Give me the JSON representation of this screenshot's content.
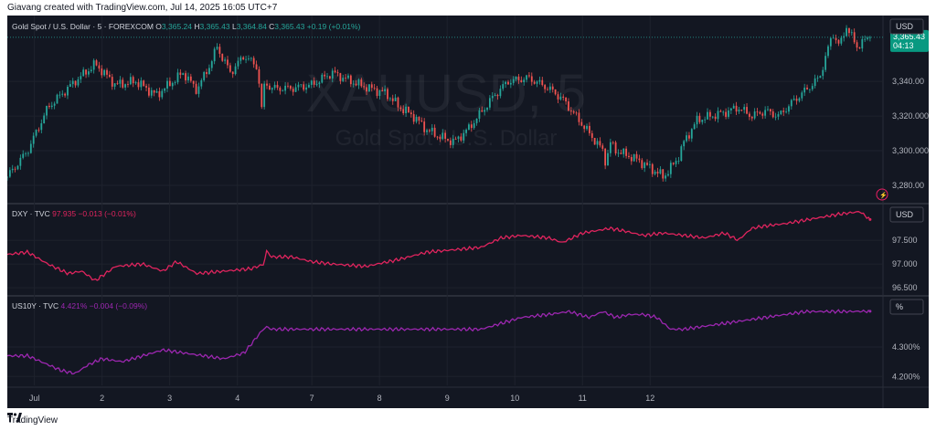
{
  "header": {
    "caption": "Giavang created with TradingView.com, Jul 14, 2025 16:05 UTC+7"
  },
  "footer": {
    "brand": "TradingView"
  },
  "colors": {
    "background": "#131722",
    "grid": "#1e222d",
    "separator": "#2a2e39",
    "up": "#26a69a",
    "down": "#ef5350",
    "dxy": "#e0245e",
    "us10y": "#9c27b0",
    "axis_text": "#b2b5be",
    "price_tag": "#089981"
  },
  "chart_data": [
    {
      "type": "candlestick",
      "legend": {
        "title": "Gold Spot / U.S. Dollar · 5 · FOREXCOM",
        "o_label": "O",
        "o": "3,365.24",
        "h_label": "H",
        "h": "3,365.43",
        "l_label": "L",
        "l": "3,364.84",
        "c_label": "C",
        "c": "3,365.43",
        "change": "+0.19 (+0.01%)"
      },
      "watermark_symbol": "XAUUSD, 5",
      "watermark_name": "Gold Spot / U.S. Dollar",
      "currency": "USD",
      "y_ticks": [
        "3,340.00",
        "3,320.000",
        "3,300.000",
        "3,280.00"
      ],
      "y_tick_values": [
        3340,
        3320,
        3300,
        3280
      ],
      "ylim": [
        3270,
        3378
      ],
      "last_price": "3,365.43",
      "countdown": "04:13",
      "last_value": 3365.43,
      "x": [
        0.0,
        0.3,
        0.6,
        1.0,
        1.3,
        1.6,
        1.9,
        2.2,
        2.6,
        2.8,
        3.0,
        3.1,
        3.2,
        3.3,
        3.5,
        3.7,
        3.78,
        3.8,
        3.9,
        4.2,
        4.5,
        4.8,
        5.2,
        5.6,
        5.8,
        6.0,
        6.2,
        6.4,
        6.6,
        6.8,
        7.0,
        7.2,
        7.4,
        7.7,
        8.0,
        8.2,
        8.4,
        8.6,
        8.8,
        8.85,
        8.9,
        9.0,
        9.3,
        9.5,
        9.7,
        9.9,
        10.0,
        10.2,
        10.4,
        10.6,
        10.8,
        11.0,
        11.2,
        11.4,
        11.6,
        11.8,
        12.0,
        12.1,
        12.2,
        12.3,
        12.4,
        12.55,
        12.65,
        12.75
      ],
      "values": [
        3285,
        3300,
        3325,
        3340,
        3350,
        3338,
        3340,
        3332,
        3345,
        3335,
        3350,
        3360,
        3352,
        3345,
        3355,
        3348,
        3315,
        3340,
        3336,
        3336,
        3338,
        3345,
        3338,
        3333,
        3325,
        3320,
        3312,
        3308,
        3305,
        3312,
        3322,
        3332,
        3340,
        3342,
        3336,
        3330,
        3320,
        3310,
        3300,
        3292,
        3305,
        3300,
        3295,
        3290,
        3285,
        3295,
        3305,
        3318,
        3320,
        3322,
        3325,
        3320,
        3323,
        3320,
        3328,
        3335,
        3342,
        3355,
        3368,
        3360,
        3372,
        3360,
        3363,
        3365.43
      ]
    },
    {
      "type": "line",
      "legend": {
        "symbol": "DXY · TVC",
        "value": "97.935",
        "change": "−0.013 (−0.01%)"
      },
      "currency": "USD",
      "y_ticks": [
        "97.500",
        "97.000",
        "96.500"
      ],
      "y_tick_values": [
        97.5,
        97.0,
        96.5
      ],
      "ylim": [
        96.35,
        98.25
      ],
      "x": [
        0.0,
        0.3,
        0.6,
        0.9,
        1.1,
        1.3,
        1.6,
        2.0,
        2.3,
        2.5,
        2.8,
        3.2,
        3.6,
        3.8,
        3.82,
        3.9,
        4.2,
        4.5,
        4.8,
        5.3,
        5.8,
        6.2,
        6.6,
        7.0,
        7.3,
        7.6,
        8.0,
        8.2,
        8.5,
        8.9,
        9.1,
        9.4,
        9.7,
        10.0,
        10.3,
        10.6,
        10.8,
        11.0,
        11.2,
        11.5,
        11.9,
        12.3,
        12.6,
        12.75
      ],
      "values": [
        97.2,
        97.25,
        97.0,
        96.8,
        96.85,
        96.65,
        96.95,
        97.0,
        96.85,
        97.05,
        96.8,
        96.85,
        96.9,
        97.0,
        97.3,
        97.15,
        97.15,
        97.05,
        97.0,
        96.95,
        97.1,
        97.25,
        97.3,
        97.35,
        97.55,
        97.6,
        97.55,
        97.45,
        97.65,
        97.75,
        97.7,
        97.6,
        97.65,
        97.6,
        97.55,
        97.65,
        97.5,
        97.75,
        97.8,
        97.85,
        97.95,
        98.05,
        98.1,
        97.935
      ]
    },
    {
      "type": "line",
      "legend": {
        "symbol": "US10Y · TVC",
        "value": "4.421%",
        "change": "−0.004 (−0.09%)"
      },
      "currency": "%",
      "y_ticks": [
        "4.300%",
        "4.200%"
      ],
      "y_tick_values": [
        4.3,
        4.2
      ],
      "ylim": [
        4.17,
        4.47
      ],
      "x": [
        0.0,
        0.3,
        0.5,
        0.8,
        1.0,
        1.2,
        1.4,
        1.7,
        2.0,
        2.3,
        2.6,
        2.9,
        3.2,
        3.5,
        3.78,
        3.8,
        3.82,
        3.9,
        4.2,
        4.6,
        5.0,
        5.4,
        5.8,
        6.2,
        6.6,
        7.0,
        7.3,
        7.6,
        8.0,
        8.3,
        8.6,
        8.8,
        9.0,
        9.2,
        9.4,
        9.6,
        9.8,
        10.0,
        10.3,
        10.6,
        10.9,
        11.2,
        11.5,
        11.8,
        12.1,
        12.4,
        12.75
      ],
      "values": [
        4.27,
        4.27,
        4.25,
        4.22,
        4.21,
        4.24,
        4.26,
        4.25,
        4.27,
        4.29,
        4.28,
        4.27,
        4.26,
        4.28,
        4.36,
        4.36,
        4.37,
        4.36,
        4.36,
        4.36,
        4.36,
        4.36,
        4.36,
        4.36,
        4.36,
        4.36,
        4.38,
        4.4,
        4.41,
        4.42,
        4.4,
        4.42,
        4.4,
        4.41,
        4.41,
        4.4,
        4.36,
        4.36,
        4.37,
        4.38,
        4.39,
        4.4,
        4.41,
        4.42,
        4.42,
        4.42,
        4.421
      ]
    }
  ],
  "x_axis": {
    "labels": [
      "Jul",
      "2",
      "3",
      "4",
      "7",
      "8",
      "9",
      "10",
      "11",
      "12"
    ],
    "positions": [
      0.4,
      1.4,
      2.4,
      3.4,
      4.5,
      5.5,
      6.5,
      7.5,
      8.5,
      9.5
    ]
  }
}
